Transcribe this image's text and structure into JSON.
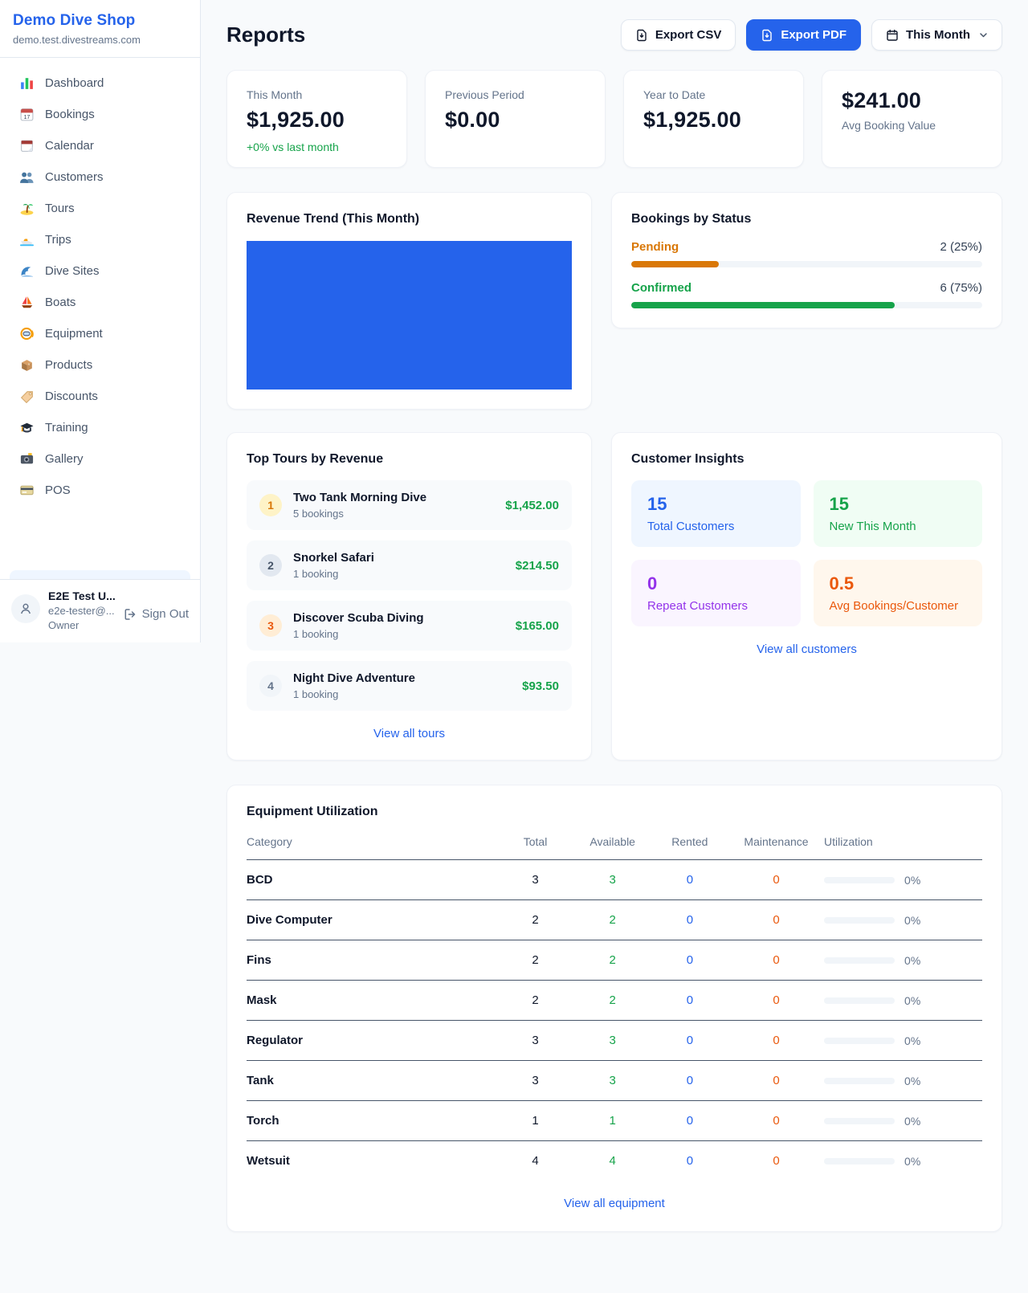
{
  "sidebar": {
    "shop_name": "Demo Dive Shop",
    "shop_domain": "demo.test.divestreams.com",
    "items": [
      {
        "label": "Dashboard",
        "icon": "bar-chart-icon"
      },
      {
        "label": "Bookings",
        "icon": "calendar-date-icon"
      },
      {
        "label": "Calendar",
        "icon": "tear-off-calendar-icon"
      },
      {
        "label": "Customers",
        "icon": "people-icon"
      },
      {
        "label": "Tours",
        "icon": "island-icon"
      },
      {
        "label": "Trips",
        "icon": "speedboat-icon"
      },
      {
        "label": "Dive Sites",
        "icon": "wave-icon"
      },
      {
        "label": "Boats",
        "icon": "sailboat-icon"
      },
      {
        "label": "Equipment",
        "icon": "dive-mask-icon"
      },
      {
        "label": "Products",
        "icon": "package-icon"
      },
      {
        "label": "Discounts",
        "icon": "tag-icon"
      },
      {
        "label": "Training",
        "icon": "graduation-cap-icon"
      },
      {
        "label": "Gallery",
        "icon": "camera-icon"
      },
      {
        "label": "POS",
        "icon": "credit-card-icon"
      }
    ],
    "user": {
      "name": "E2E Test U...",
      "email": "e2e-tester@...",
      "role": "Owner",
      "sign_out_label": "Sign Out"
    }
  },
  "header": {
    "title": "Reports",
    "export_csv_label": "Export CSV",
    "export_pdf_label": "Export PDF",
    "period_label": "This Month"
  },
  "stats": [
    {
      "label": "This Month",
      "value": "$1,925.00",
      "delta": "+0% vs last month"
    },
    {
      "label": "Previous Period",
      "value": "$0.00"
    },
    {
      "label": "Year to Date",
      "value": "$1,925.00"
    },
    {
      "label": "Avg Booking Value",
      "value": "$241.00"
    }
  ],
  "revenue_trend": {
    "title": "Revenue Trend (This Month)",
    "bar_color": "#2563eb"
  },
  "bookings_by_status": {
    "title": "Bookings by Status",
    "statuses": [
      {
        "label": "Pending",
        "value": "2 (25%)",
        "percent": 25,
        "color": "#d97706"
      },
      {
        "label": "Confirmed",
        "value": "6 (75%)",
        "percent": 75,
        "color": "#16a34a"
      }
    ]
  },
  "chart_data": [
    {
      "type": "bar",
      "title": "Revenue Trend (This Month)",
      "categories": [
        "This Month"
      ],
      "values": [
        1925
      ],
      "color": "#2563eb",
      "note": "single solid bar fills the entire plot area"
    },
    {
      "type": "bar",
      "title": "Bookings by Status",
      "categories": [
        "Pending",
        "Confirmed"
      ],
      "values": [
        2,
        6
      ],
      "percent": [
        25,
        75
      ],
      "colors": [
        "#d97706",
        "#16a34a"
      ]
    }
  ],
  "top_tours": {
    "title": "Top Tours by Revenue",
    "view_all": "View all tours",
    "tours": [
      {
        "rank": "1",
        "name": "Two Tank Morning Dive",
        "bookings": "5 bookings",
        "revenue": "$1,452.00"
      },
      {
        "rank": "2",
        "name": "Snorkel Safari",
        "bookings": "1 booking",
        "revenue": "$214.50"
      },
      {
        "rank": "3",
        "name": "Discover Scuba Diving",
        "bookings": "1 booking",
        "revenue": "$165.00"
      },
      {
        "rank": "4",
        "name": "Night Dive Adventure",
        "bookings": "1 booking",
        "revenue": "$93.50"
      }
    ]
  },
  "customer_insights": {
    "title": "Customer Insights",
    "view_all": "View all customers",
    "tiles": [
      {
        "value": "15",
        "label": "Total Customers",
        "accent": "#2563eb"
      },
      {
        "value": "15",
        "label": "New This Month",
        "accent": "#16a34a"
      },
      {
        "value": "0",
        "label": "Repeat Customers",
        "accent": "#9333ea"
      },
      {
        "value": "0.5",
        "label": "Avg Bookings/Customer",
        "accent": "#ea580c"
      }
    ]
  },
  "equipment": {
    "title": "Equipment Utilization",
    "view_all": "View all equipment",
    "columns": [
      "Category",
      "Total",
      "Available",
      "Rented",
      "Maintenance",
      "Utilization"
    ],
    "rows": [
      {
        "category": "BCD",
        "total": "3",
        "available": "3",
        "rented": "0",
        "maintenance": "0",
        "utilization": "0%",
        "percent": 0
      },
      {
        "category": "Dive Computer",
        "total": "2",
        "available": "2",
        "rented": "0",
        "maintenance": "0",
        "utilization": "0%",
        "percent": 0
      },
      {
        "category": "Fins",
        "total": "2",
        "available": "2",
        "rented": "0",
        "maintenance": "0",
        "utilization": "0%",
        "percent": 0
      },
      {
        "category": "Mask",
        "total": "2",
        "available": "2",
        "rented": "0",
        "maintenance": "0",
        "utilization": "0%",
        "percent": 0
      },
      {
        "category": "Regulator",
        "total": "3",
        "available": "3",
        "rented": "0",
        "maintenance": "0",
        "utilization": "0%",
        "percent": 0
      },
      {
        "category": "Tank",
        "total": "3",
        "available": "3",
        "rented": "0",
        "maintenance": "0",
        "utilization": "0%",
        "percent": 0
      },
      {
        "category": "Torch",
        "total": "1",
        "available": "1",
        "rented": "0",
        "maintenance": "0",
        "utilization": "0%",
        "percent": 0
      },
      {
        "category": "Wetsuit",
        "total": "4",
        "available": "4",
        "rented": "0",
        "maintenance": "0",
        "utilization": "0%",
        "percent": 0
      }
    ]
  }
}
